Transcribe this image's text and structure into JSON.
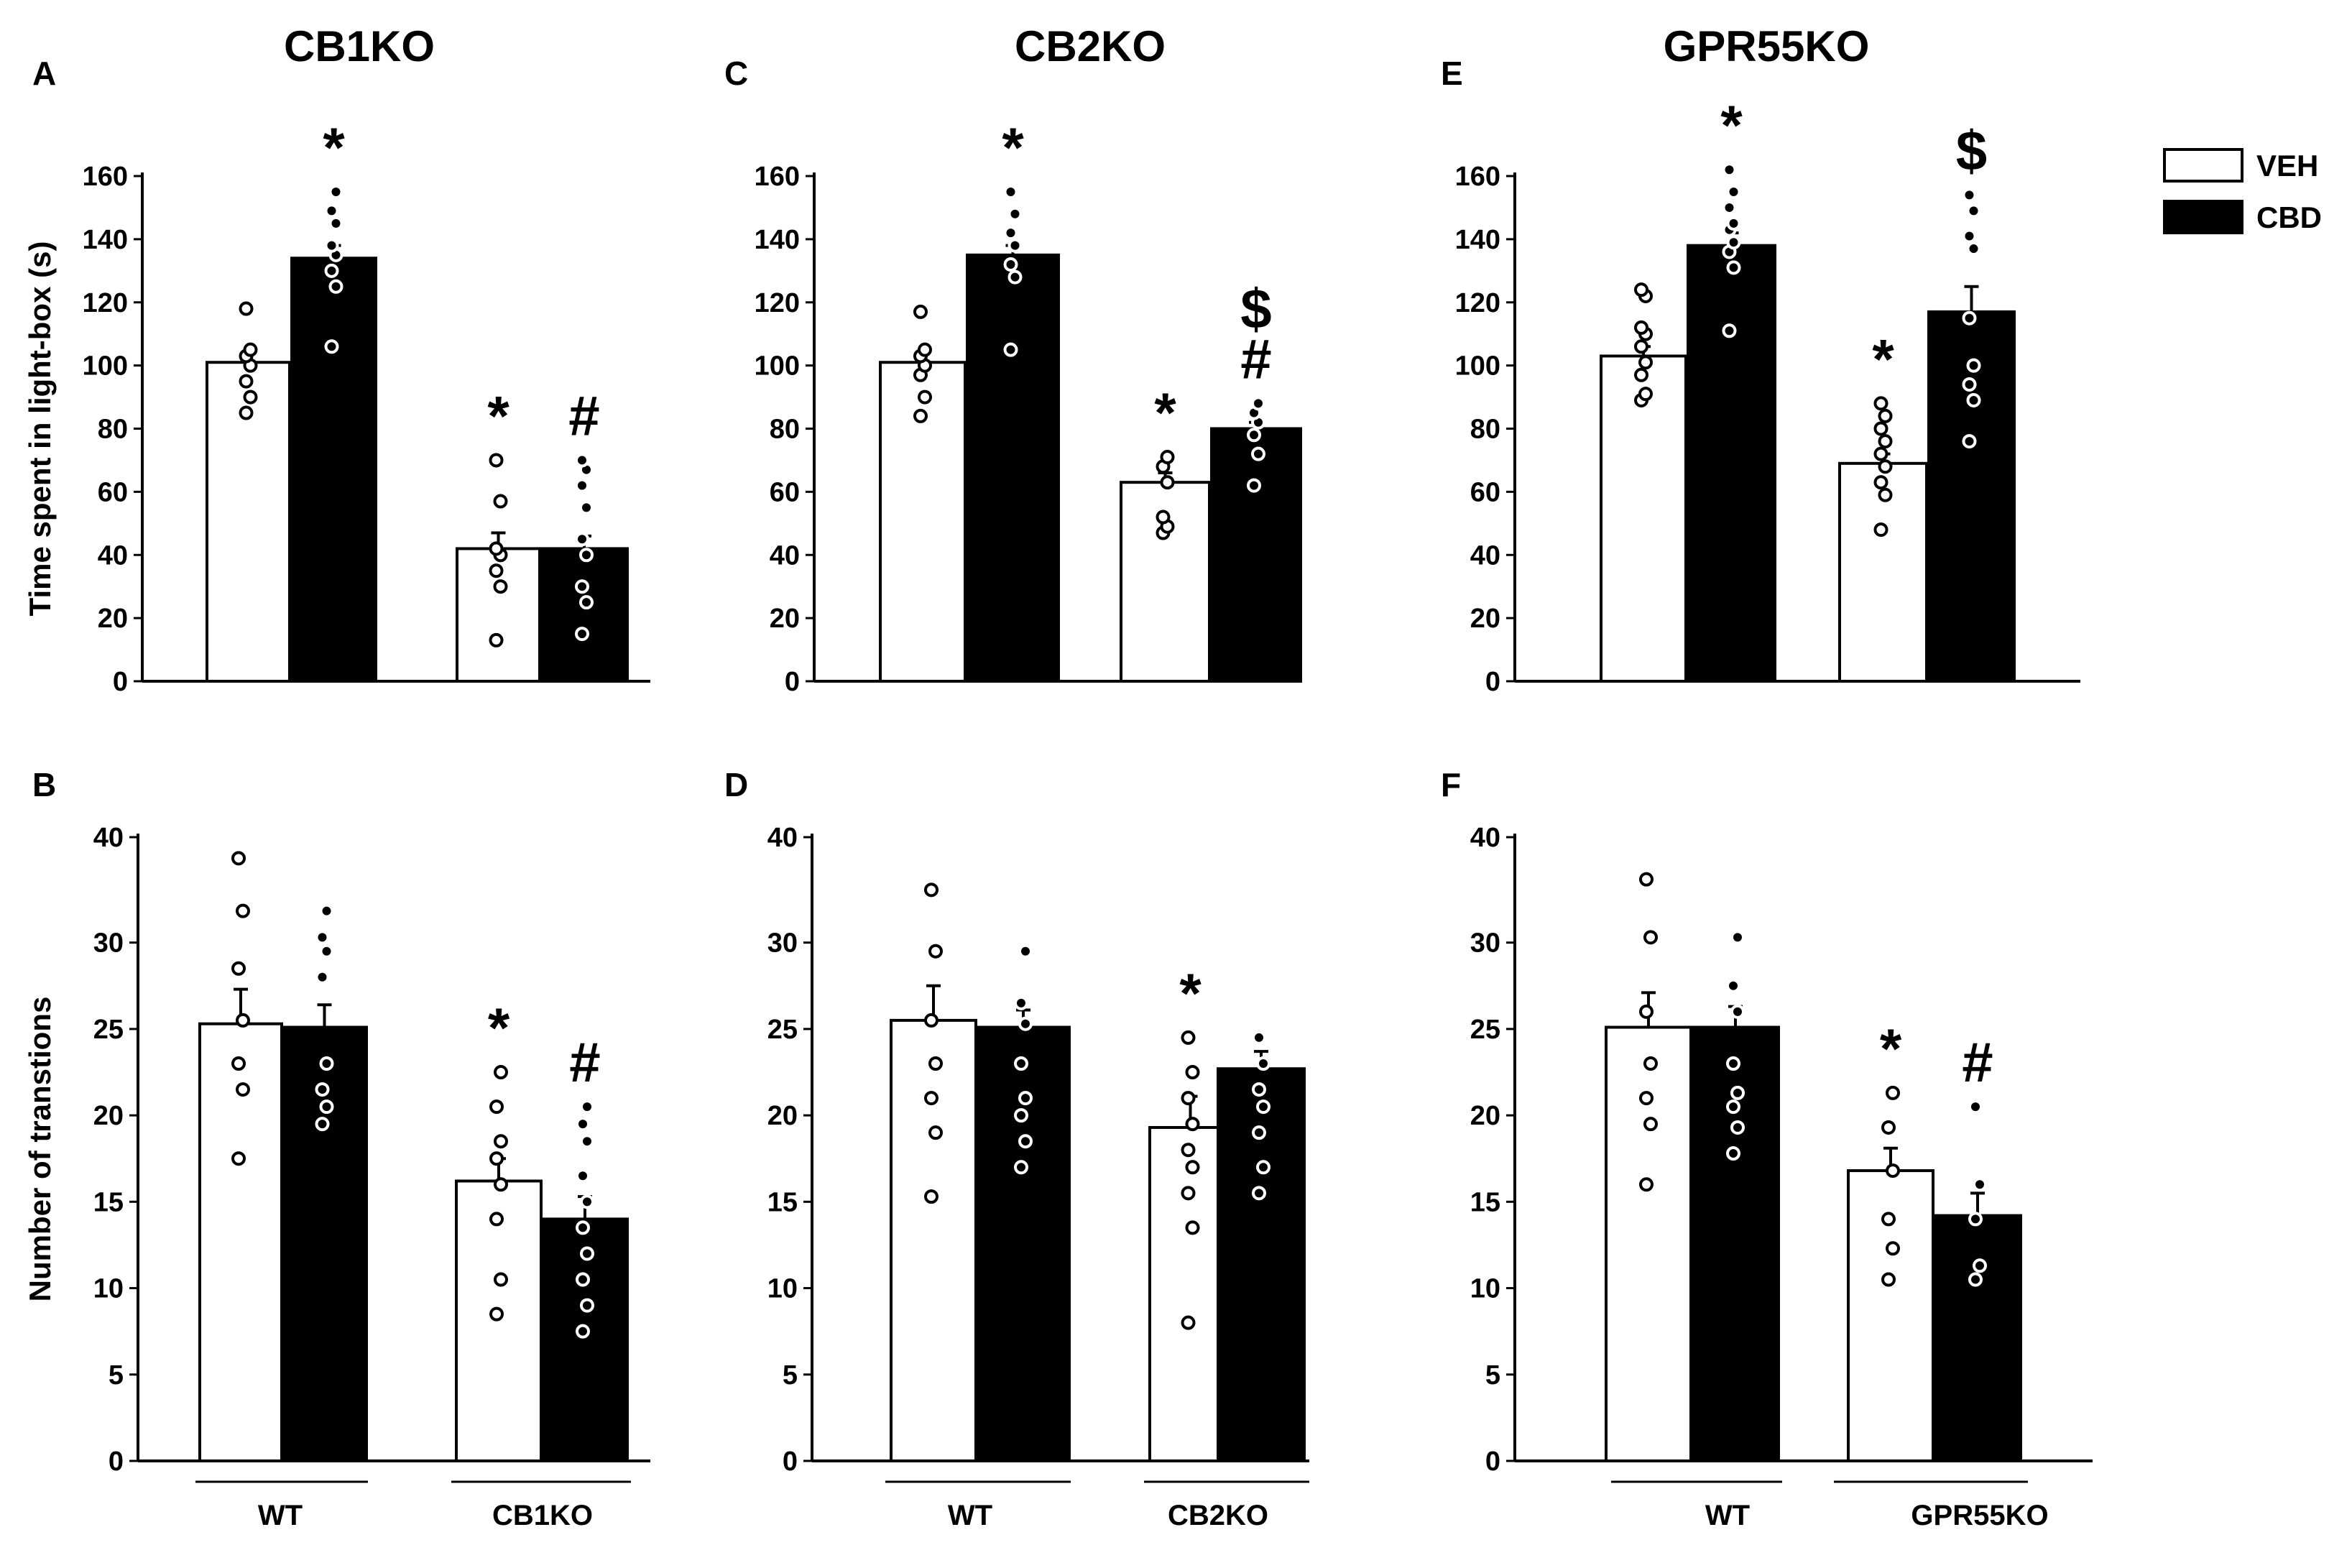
{
  "legend": [
    {
      "label": "VEH",
      "color": "#ffffff"
    },
    {
      "label": "CBD",
      "color": "#000000"
    }
  ],
  "colors": {
    "veh": "#ffffff",
    "cbd": "#000000",
    "stroke": "#000000"
  },
  "chart_data": [
    {
      "type": "bar",
      "panel": "A",
      "title": "CB1KO",
      "ylabel": "Time spent in light-box (s)",
      "ylim": [
        0,
        160
      ],
      "yticks": [
        "0",
        "20",
        "40",
        "60",
        "80",
        "100",
        "120",
        "140",
        "160"
      ],
      "groups": [
        "WT",
        "CB1KO"
      ],
      "show_groups": false,
      "series": [
        {
          "name": "VEH",
          "values": [
            101,
            42
          ],
          "err": [
            3,
            5
          ]
        },
        {
          "name": "CBD",
          "values": [
            134,
            42
          ],
          "err": [
            4,
            4
          ]
        }
      ],
      "points": [
        [
          [
            85,
            90,
            95,
            100,
            103,
            105,
            118
          ],
          [
            13,
            30,
            35,
            40,
            42,
            57,
            70
          ]
        ],
        [
          [
            106,
            125,
            130,
            135,
            138,
            145,
            149,
            155
          ],
          [
            15,
            25,
            30,
            40,
            45,
            55,
            62,
            67,
            70
          ]
        ]
      ],
      "annotations": [
        {
          "series": 1,
          "group": 0,
          "text": "*"
        },
        {
          "series": 0,
          "group": 1,
          "text": "*"
        },
        {
          "series": 1,
          "group": 1,
          "text": "#"
        }
      ]
    },
    {
      "type": "bar",
      "panel": "B",
      "title": "",
      "ylabel": "Number of transtions",
      "ylim": [
        0,
        40
      ],
      "yticks": [
        "0",
        "5",
        "10",
        "15",
        "20",
        "25",
        "30",
        "40"
      ],
      "groups": [
        "WT",
        "CB1KO"
      ],
      "show_groups": true,
      "series": [
        {
          "name": "VEH",
          "values": [
            25.3,
            16.2
          ],
          "err": [
            2,
            1.3
          ]
        },
        {
          "name": "CBD",
          "values": [
            25.1,
            14.0
          ],
          "err": [
            1.3,
            1.3
          ]
        }
      ],
      "points": [
        [
          [
            17.5,
            21.5,
            23,
            25.5,
            28.5,
            33,
            38
          ],
          [
            8.5,
            10.5,
            14,
            16,
            17.5,
            18.5,
            20.5,
            22.5
          ]
        ],
        [
          [
            19.5,
            20.5,
            21.5,
            23,
            28,
            29.5,
            30.5,
            33
          ],
          [
            7.5,
            9,
            10.5,
            12,
            13.5,
            15,
            16.5,
            18.5,
            19.5,
            20.5
          ]
        ]
      ],
      "annotations": [
        {
          "series": 0,
          "group": 1,
          "text": "*"
        },
        {
          "series": 1,
          "group": 1,
          "text": "#"
        }
      ]
    },
    {
      "type": "bar",
      "panel": "C",
      "title": "CB2KO",
      "ylabel": "",
      "ylim": [
        0,
        160
      ],
      "yticks": [
        "0",
        "20",
        "40",
        "60",
        "80",
        "100",
        "120",
        "140",
        "160"
      ],
      "groups": [
        "WT",
        "CB2KO"
      ],
      "show_groups": false,
      "series": [
        {
          "name": "VEH",
          "values": [
            101,
            63
          ],
          "err": [
            3,
            3
          ]
        },
        {
          "name": "CBD",
          "values": [
            135,
            80
          ],
          "err": [
            3,
            2
          ]
        }
      ],
      "points": [
        [
          [
            84,
            90,
            97,
            100,
            103,
            105,
            117
          ],
          [
            47,
            49,
            52,
            63,
            68,
            71
          ]
        ],
        [
          [
            105,
            128,
            132,
            138,
            142,
            148,
            155
          ],
          [
            62,
            72,
            78,
            82,
            85,
            88
          ]
        ]
      ],
      "annotations": [
        {
          "series": 1,
          "group": 0,
          "text": "*"
        },
        {
          "series": 0,
          "group": 1,
          "text": "*"
        },
        {
          "series": 1,
          "group": 1,
          "text": "#"
        },
        {
          "series": 1,
          "group": 1,
          "text": "$"
        }
      ]
    },
    {
      "type": "bar",
      "panel": "D",
      "title": "",
      "ylabel": "",
      "ylim": [
        0,
        40
      ],
      "yticks": [
        "0",
        "5",
        "10",
        "15",
        "20",
        "25",
        "30",
        "40"
      ],
      "groups": [
        "WT",
        "CB2KO"
      ],
      "show_groups": true,
      "series": [
        {
          "name": "VEH",
          "values": [
            25.5,
            19.3
          ],
          "err": [
            2,
            1.8
          ]
        },
        {
          "name": "CBD",
          "values": [
            25.1,
            22.7
          ],
          "err": [
            1,
            1
          ]
        }
      ],
      "points": [
        [
          [
            15.3,
            19,
            21,
            23,
            25.5,
            29.5,
            35
          ],
          [
            8,
            13.5,
            15.5,
            17,
            18,
            19.5,
            21,
            22.5,
            24.5
          ]
        ],
        [
          [
            17,
            18.5,
            20,
            21,
            23,
            25.3,
            26.5,
            29.5
          ],
          [
            15.5,
            17,
            19,
            20.5,
            21.5,
            23,
            24.5
          ]
        ]
      ],
      "annotations": [
        {
          "series": 0,
          "group": 1,
          "text": "*"
        }
      ]
    },
    {
      "type": "bar",
      "panel": "E",
      "title": "GPR55KO",
      "ylabel": "",
      "ylim": [
        0,
        160
      ],
      "yticks": [
        "0",
        "20",
        "40",
        "60",
        "80",
        "100",
        "120",
        "140",
        "160"
      ],
      "groups": [
        "WT",
        "GPR55KO"
      ],
      "show_groups": false,
      "series": [
        {
          "name": "VEH",
          "values": [
            103,
            69
          ],
          "err": [
            3,
            3
          ]
        },
        {
          "name": "CBD",
          "values": [
            138,
            117
          ],
          "err": [
            4,
            8
          ]
        }
      ],
      "points": [
        [
          [
            89,
            91,
            97,
            101,
            106,
            110,
            112,
            122,
            124
          ],
          [
            48,
            59,
            63,
            68,
            72,
            76,
            80,
            84,
            88
          ]
        ],
        [
          [
            111,
            131,
            136,
            139,
            143,
            145,
            150,
            155,
            162
          ],
          [
            76,
            89,
            94,
            100,
            115,
            137,
            141,
            149,
            154
          ]
        ]
      ],
      "annotations": [
        {
          "series": 1,
          "group": 0,
          "text": "*"
        },
        {
          "series": 0,
          "group": 1,
          "text": "*"
        },
        {
          "series": 1,
          "group": 1,
          "text": "$"
        }
      ]
    },
    {
      "type": "bar",
      "panel": "F",
      "title": "",
      "ylabel": "",
      "ylim": [
        0,
        40
      ],
      "yticks": [
        "0",
        "5",
        "10",
        "15",
        "20",
        "25",
        "30",
        "40"
      ],
      "groups": [
        "WT",
        "GPR55KO"
      ],
      "show_groups": true,
      "series": [
        {
          "name": "VEH",
          "values": [
            25.1,
            16.8
          ],
          "err": [
            2,
            1.3
          ]
        },
        {
          "name": "CBD",
          "values": [
            25.1,
            14.2
          ],
          "err": [
            1.2,
            1.3
          ]
        }
      ],
      "points": [
        [
          [
            16,
            19.5,
            21,
            23,
            26,
            30.5,
            36
          ],
          [
            10.5,
            12.3,
            14,
            16.8,
            19.3,
            21.3
          ]
        ],
        [
          [
            17.8,
            19.3,
            20.5,
            21.3,
            23,
            26,
            27.5,
            30.5
          ],
          [
            10.5,
            11.3,
            14,
            16,
            20.5
          ]
        ]
      ],
      "annotations": [
        {
          "series": 0,
          "group": 1,
          "text": "*"
        },
        {
          "series": 1,
          "group": 1,
          "text": "#"
        }
      ]
    }
  ]
}
